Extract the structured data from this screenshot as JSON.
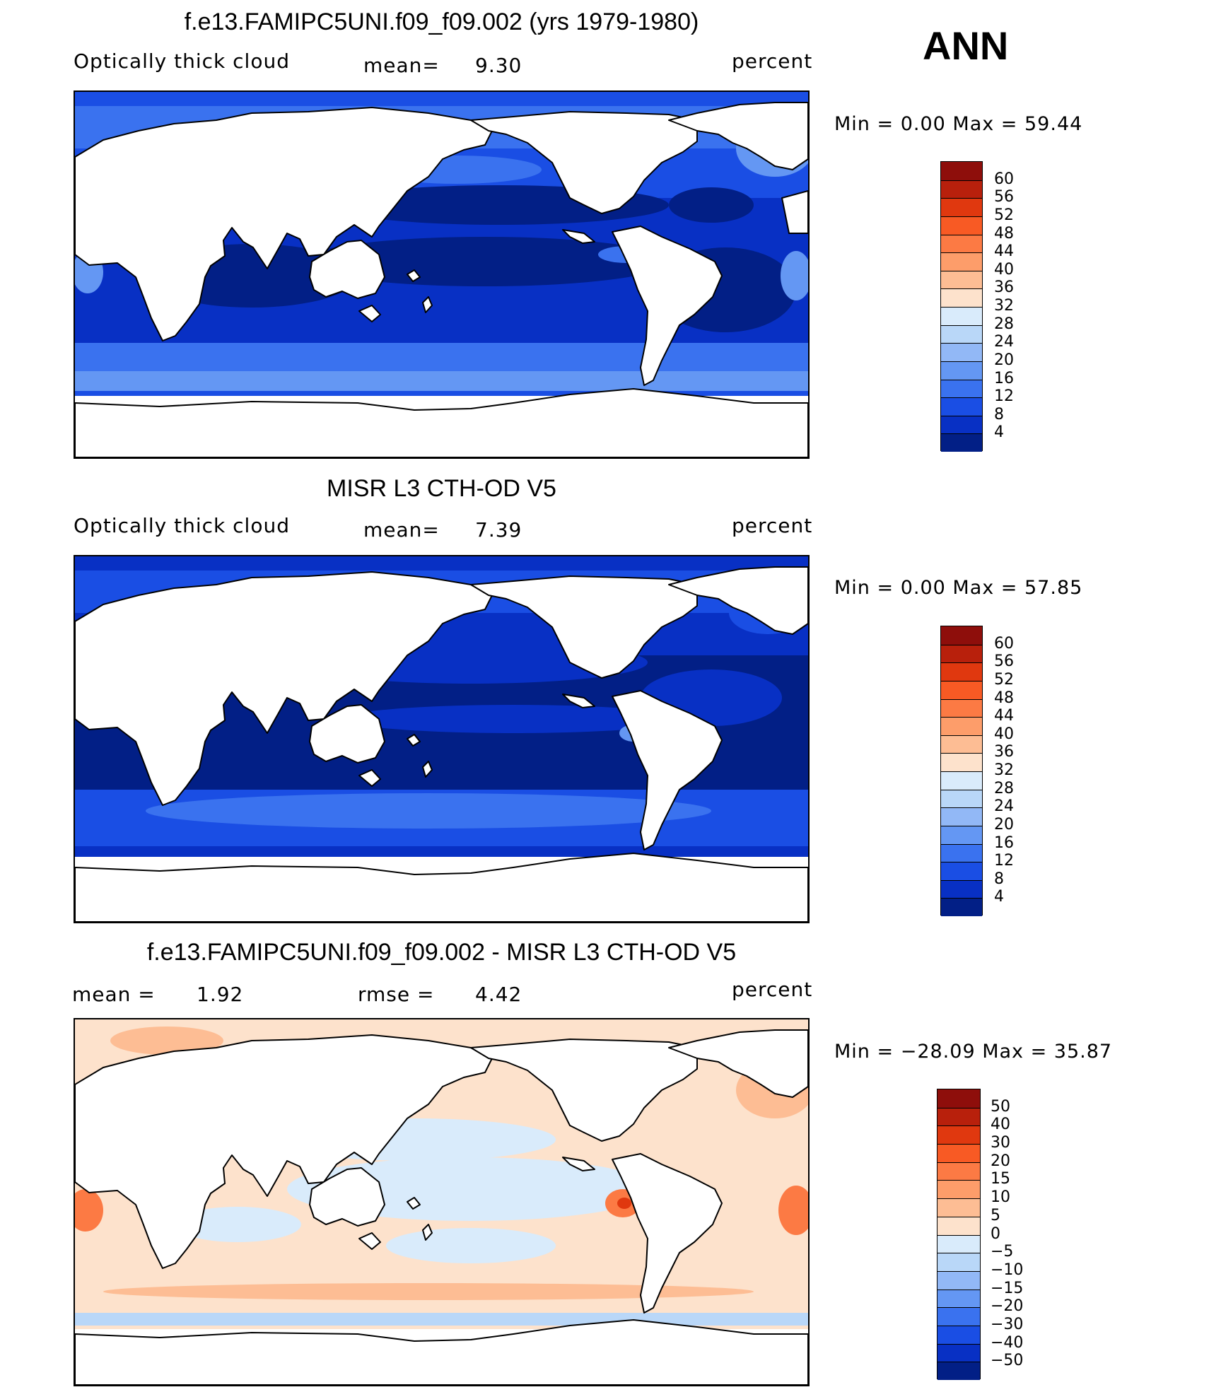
{
  "season": "ANN",
  "panels": [
    {
      "title": "f.e13.FAMIPC5UNI.f09_f09.002 (yrs 1979-1980)",
      "left": "Optically thick cloud",
      "mean_label": "mean=",
      "mean_value": "9.30",
      "units": "percent",
      "minmax": "Min =     0.00  Max  =    59.44",
      "colorbar_labels": [
        "60",
        "56",
        "52",
        "48",
        "44",
        "40",
        "36",
        "32",
        "28",
        "24",
        "20",
        "16",
        "12",
        "8",
        "4"
      ]
    },
    {
      "title": "MISR L3 CTH-OD V5",
      "left": "Optically thick cloud",
      "mean_label": "mean=",
      "mean_value": "7.39",
      "units": "percent",
      "minmax": "Min =     0.00  Max  =    57.85",
      "colorbar_labels": [
        "60",
        "56",
        "52",
        "48",
        "44",
        "40",
        "36",
        "32",
        "28",
        "24",
        "20",
        "16",
        "12",
        "8",
        "4"
      ]
    },
    {
      "title": "f.e13.FAMIPC5UNI.f09_f09.002 - MISR L3 CTH-OD V5",
      "mean_label": "mean  =",
      "mean_value": "1.92",
      "rmse_label": "rmse  =",
      "rmse_value": "4.42",
      "units": "percent",
      "minmax": "Min  = −28.09  Max  =    35.87",
      "colorbar_labels": [
        "50",
        "40",
        "30",
        "20",
        "15",
        "10",
        "5",
        "0",
        "−5",
        "−10",
        "−15",
        "−20",
        "−30",
        "−40",
        "−50"
      ]
    }
  ],
  "colors": {
    "abs_scale": [
      "#8e0e0b",
      "#b8200c",
      "#e0380f",
      "#f85a24",
      "#fc7a44",
      "#fd9d6a",
      "#fdbd94",
      "#fde2cc",
      "#d9ebfb",
      "#b9d7f8",
      "#92b8f6",
      "#6497f3",
      "#3a72ef",
      "#1a4ee4",
      "#0830c4",
      "#021f86"
    ],
    "diff_scale": [
      "#8e0e0b",
      "#b8200c",
      "#e0380f",
      "#f85a24",
      "#fc7a44",
      "#fd9d6a",
      "#fdbd94",
      "#fde2cc",
      "#d9ebfb",
      "#b9d7f8",
      "#92b8f6",
      "#6497f3",
      "#3a72ef",
      "#1a4ee4",
      "#0830c4",
      "#021f86"
    ]
  }
}
